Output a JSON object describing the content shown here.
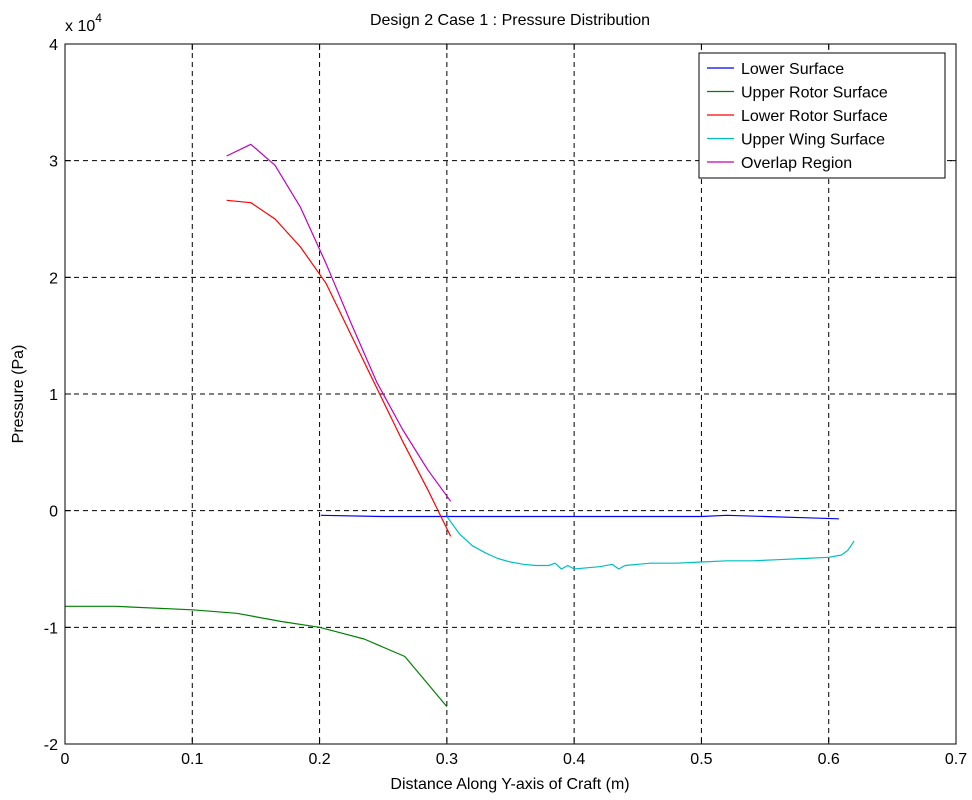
{
  "chart_data": {
    "type": "line",
    "title": "Design 2 Case 1 : Pressure Distribution",
    "xlabel": "Distance Along Y-axis of Craft (m)",
    "ylabel": "Pressure (Pa)",
    "y_multiplier_label": "x 10",
    "y_multiplier_exponent": "4",
    "xlim": [
      0,
      0.7
    ],
    "ylim": [
      -2,
      4
    ],
    "x_ticks": [
      0,
      0.1,
      0.2,
      0.3,
      0.4,
      0.5,
      0.6,
      0.7
    ],
    "x_tick_labels": [
      "0",
      "0.1",
      "0.2",
      "0.3",
      "0.4",
      "0.5",
      "0.6",
      "0.7"
    ],
    "y_ticks": [
      -2,
      -1,
      0,
      1,
      2,
      3,
      4
    ],
    "y_tick_labels": [
      "-2",
      "-1",
      "0",
      "1",
      "2",
      "3",
      "4"
    ],
    "grid": true,
    "legend_position": "top-right",
    "series": [
      {
        "name": "Lower Surface",
        "color": "#0000ff",
        "x": [
          0.201,
          0.25,
          0.3,
          0.35,
          0.4,
          0.45,
          0.5,
          0.52,
          0.55,
          0.58,
          0.608
        ],
        "y": [
          -0.04,
          -0.05,
          -0.05,
          -0.05,
          -0.05,
          -0.05,
          -0.05,
          -0.04,
          -0.05,
          -0.06,
          -0.07
        ]
      },
      {
        "name": "Upper Rotor Surface",
        "color": "#008000",
        "x": [
          0,
          0.04,
          0.1,
          0.135,
          0.17,
          0.2,
          0.235,
          0.267,
          0.3
        ],
        "y": [
          -0.82,
          -0.82,
          -0.85,
          -0.88,
          -0.95,
          -1.0,
          -1.1,
          -1.25,
          -1.68
        ]
      },
      {
        "name": "Lower Rotor Surface",
        "color": "#ff0000",
        "x": [
          0.127,
          0.146,
          0.165,
          0.185,
          0.205,
          0.225,
          0.245,
          0.265,
          0.285,
          0.303
        ],
        "y": [
          2.66,
          2.64,
          2.5,
          2.26,
          1.95,
          1.5,
          1.05,
          0.6,
          0.18,
          -0.22
        ]
      },
      {
        "name": "Upper Wing Surface",
        "color": "#00bfbf",
        "x": [
          0.3,
          0.31,
          0.32,
          0.33,
          0.34,
          0.35,
          0.36,
          0.37,
          0.38,
          0.385,
          0.39,
          0.395,
          0.4,
          0.41,
          0.42,
          0.43,
          0.435,
          0.44,
          0.45,
          0.46,
          0.47,
          0.48,
          0.5,
          0.52,
          0.54,
          0.56,
          0.58,
          0.6,
          0.61,
          0.615,
          0.62
        ],
        "y": [
          -0.05,
          -0.2,
          -0.3,
          -0.36,
          -0.41,
          -0.44,
          -0.46,
          -0.47,
          -0.47,
          -0.45,
          -0.5,
          -0.47,
          -0.5,
          -0.49,
          -0.48,
          -0.46,
          -0.5,
          -0.47,
          -0.46,
          -0.45,
          -0.45,
          -0.45,
          -0.44,
          -0.43,
          -0.43,
          -0.42,
          -0.41,
          -0.4,
          -0.38,
          -0.34,
          -0.26
        ]
      },
      {
        "name": "Overlap Region",
        "color": "#bf00bf",
        "x": [
          0.127,
          0.146,
          0.165,
          0.185,
          0.205,
          0.225,
          0.245,
          0.265,
          0.285,
          0.303
        ],
        "y": [
          3.04,
          3.14,
          2.96,
          2.6,
          2.12,
          1.6,
          1.1,
          0.7,
          0.35,
          0.08
        ]
      }
    ]
  }
}
